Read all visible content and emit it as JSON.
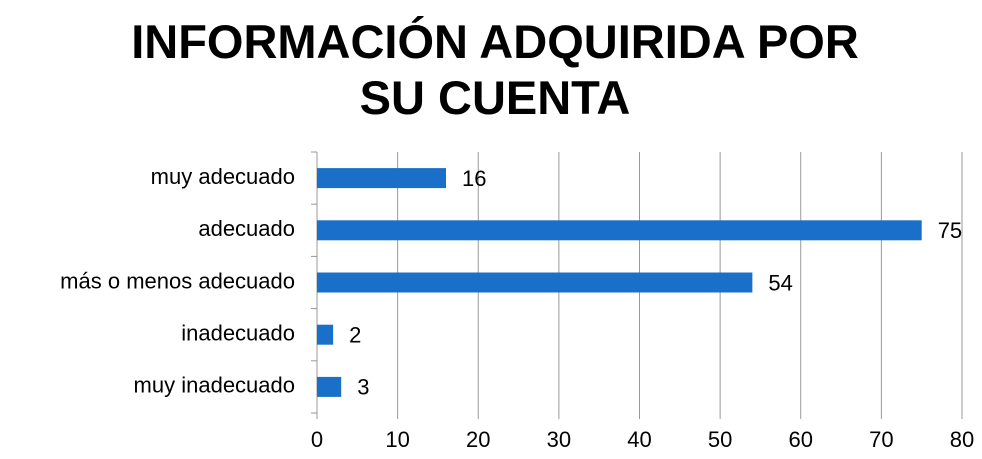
{
  "chart_data": {
    "type": "barh",
    "title": "INFORMACIÓN ADQUIRIDA POR SU CUENTA",
    "categories": [
      "muy adecuado",
      "adecuado",
      "más o menos adecuado",
      "inadecuado",
      "muy inadecuado"
    ],
    "values": [
      16,
      75,
      54,
      2,
      3
    ],
    "color": "#1a70c8",
    "xlim": [
      0,
      80
    ],
    "xticks": [
      0,
      10,
      20,
      30,
      40,
      50,
      60,
      70,
      80
    ],
    "grid": true
  }
}
